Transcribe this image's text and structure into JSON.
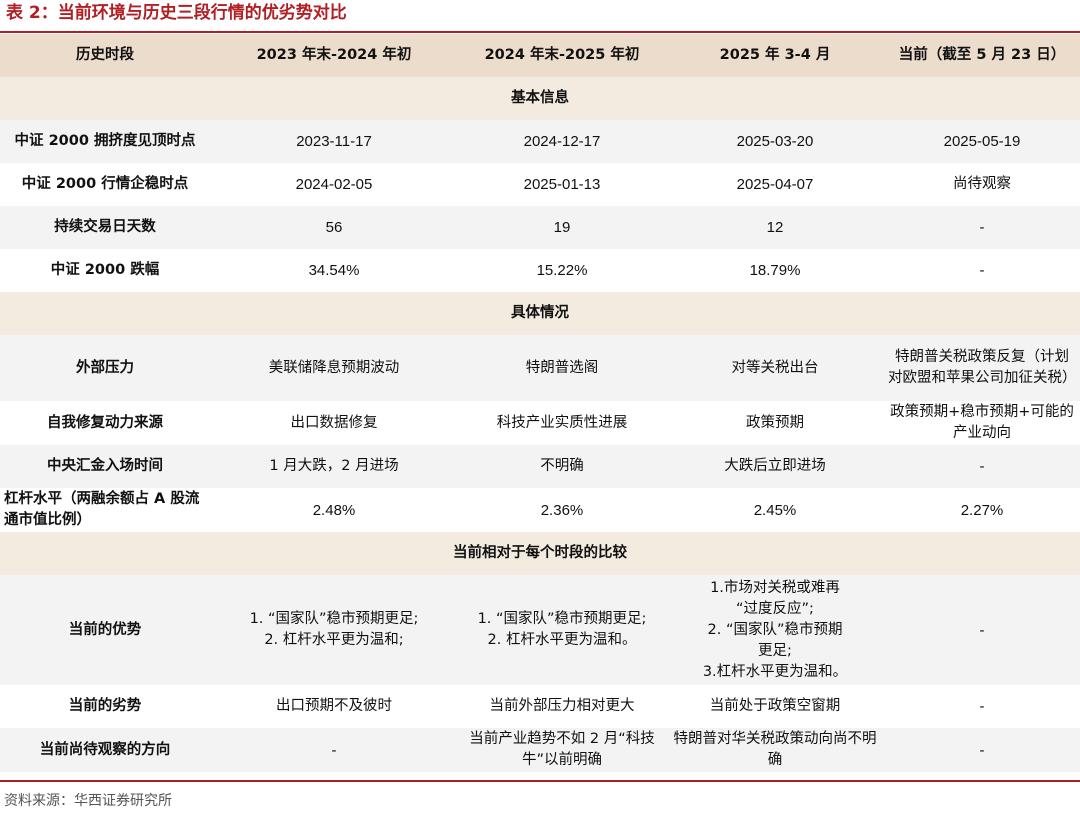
{
  "caption": "表 2：当前环境与历史三段行情的优劣势对比",
  "header": [
    "历史时段",
    "2023 年末-2024 年初",
    "2024 年末-2025 年初",
    "2025 年 3-4 月",
    "当前（截至 5 月 23 日）"
  ],
  "sections": {
    "basic": "基本信息",
    "detail": "具体情况",
    "compare": "当前相对于每个时段的比较"
  },
  "rows": {
    "peak": [
      "中证 2000 拥挤度见顶时点",
      "2023-11-17",
      "2024-12-17",
      "2025-03-20",
      "2025-05-19"
    ],
    "stable": [
      "中证 2000 行情企稳时点",
      "2024-02-05",
      "2025-01-13",
      "2025-04-07",
      "尚待观察"
    ],
    "days": [
      "持续交易日天数",
      "56",
      "19",
      "12",
      "-"
    ],
    "drop": [
      "中证 2000 跌幅",
      "34.54%",
      "15.22%",
      "18.79%",
      "-"
    ],
    "pressure": [
      "外部压力",
      "美联储降息预期波动",
      "特朗普选阁",
      "对等关税出台",
      "特朗普关税政策反复（计划对欧盟和苹果公司加征关税）"
    ],
    "repair": [
      "自我修复动力来源",
      "出口数据修复",
      "科技产业实质性进展",
      "政策预期",
      "政策预期+稳市预期+可能的产业动向"
    ],
    "huijin": [
      "中央汇金入场时间",
      "1 月大跌，2 月进场",
      "不明确",
      "大跌后立即进场",
      "-"
    ],
    "leverage": [
      "杠杆水平（两融余额占 A 股流通市值比例）",
      "2.48%",
      "2.36%",
      "2.45%",
      "2.27%"
    ],
    "advantage": {
      "label": "当前的优势",
      "c1": [
        "1. “国家队”稳市预期更足;",
        "2. 杠杆水平更为温和;"
      ],
      "c2": [
        "1. “国家队”稳市预期更足;",
        "2. 杠杆水平更为温和。"
      ],
      "c3": [
        "1.市场对关税或难再",
        "“过度反应”;",
        "2. “国家队”稳市预期",
        "更足;",
        "3.杠杆水平更为温和。"
      ],
      "c4": "-"
    },
    "disadvantage": [
      "当前的劣势",
      "出口预期不及彼时",
      "当前外部压力相对更大",
      "当前处于政策空窗期",
      "-"
    ],
    "watch": [
      "当前尚待观察的方向",
      "-",
      "当前产业趋势不如 2 月“科技牛”以前明确",
      "特朗普对华关税政策动向尚不明确",
      "-"
    ]
  },
  "footnote": "资料来源：华西证券研究所"
}
